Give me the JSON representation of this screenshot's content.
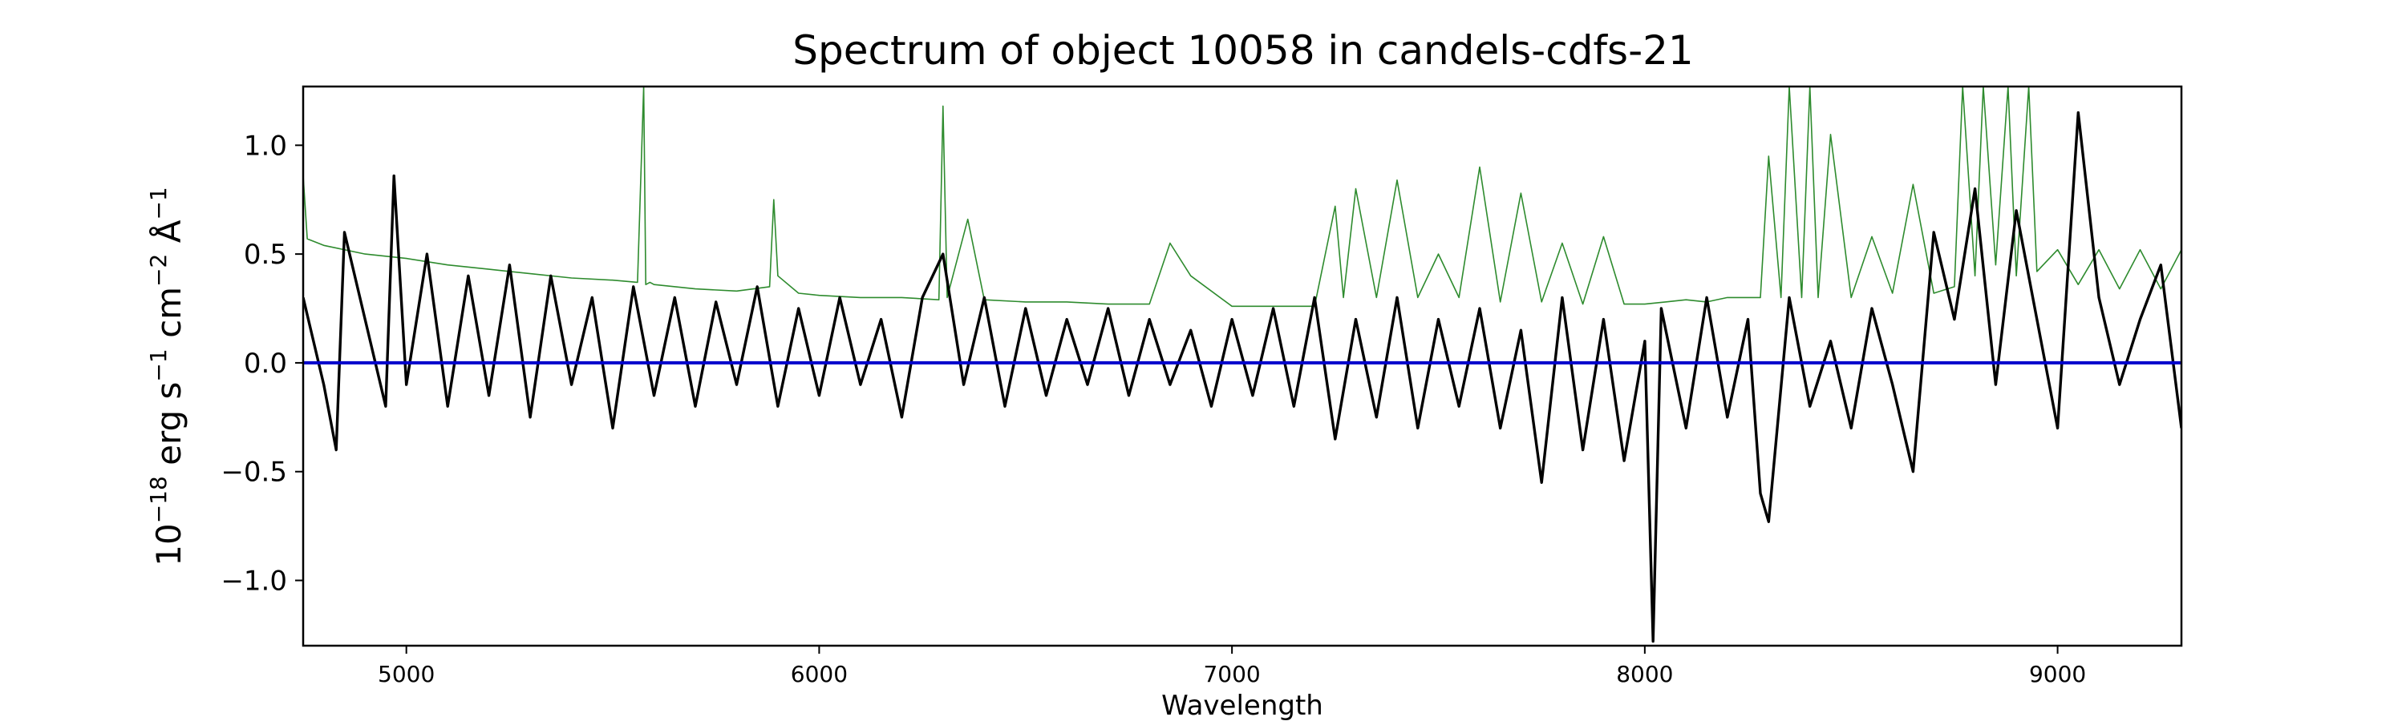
{
  "chart_data": {
    "type": "line",
    "title": "Spectrum of object 10058 in candels-cdfs-21",
    "xlabel": "Wavelength",
    "ylabel": "10^{-18} erg s^{-1} cm^{-2} Å^{-1}",
    "ylabel_parts": {
      "base1": "10",
      "sup1": "−18",
      "unit1": " erg s",
      "sup2": "−1",
      "unit2": " cm",
      "sup3": "−2",
      "unit3": " Å",
      "sup4": "−1"
    },
    "xlim": [
      4750,
      9300
    ],
    "ylim": [
      -1.3,
      1.27
    ],
    "xticks": [
      5000,
      6000,
      7000,
      8000,
      9000
    ],
    "xtick_labels": [
      "5000",
      "6000",
      "7000",
      "8000",
      "9000"
    ],
    "yticks": [
      -1.0,
      -0.5,
      0.0,
      0.5,
      1.0
    ],
    "ytick_labels": [
      "−1.0",
      "−0.5",
      "0.0",
      "0.5",
      "1.0"
    ],
    "grid": false,
    "series": [
      {
        "color": "#2e8b2e",
        "style": "thin",
        "x": [
          4750,
          4760,
          4800,
          4900,
          5000,
          5100,
          5200,
          5300,
          5400,
          5500,
          5560,
          5575,
          5580,
          5590,
          5600,
          5700,
          5800,
          5880,
          5890,
          5900,
          5950,
          6000,
          6100,
          6200,
          6290,
          6300,
          6310,
          6360,
          6400,
          6500,
          6600,
          6700,
          6800,
          6850,
          6900,
          7000,
          7100,
          7200,
          7250,
          7270,
          7300,
          7350,
          7400,
          7450,
          7500,
          7550,
          7600,
          7650,
          7700,
          7750,
          7800,
          7850,
          7900,
          7950,
          8000,
          8050,
          8100,
          8150,
          8200,
          8280,
          8300,
          8330,
          8350,
          8380,
          8400,
          8420,
          8450,
          8500,
          8550,
          8600,
          8650,
          8700,
          8750,
          8770,
          8800,
          8820,
          8850,
          8880,
          8900,
          8930,
          8950,
          9000,
          9050,
          9100,
          9150,
          9200,
          9250,
          9300
        ],
        "values": [
          0.86,
          0.57,
          0.54,
          0.5,
          0.48,
          0.45,
          0.43,
          0.41,
          0.39,
          0.38,
          0.37,
          1.27,
          0.36,
          0.37,
          0.36,
          0.34,
          0.33,
          0.35,
          0.75,
          0.4,
          0.32,
          0.31,
          0.3,
          0.3,
          0.29,
          1.18,
          0.3,
          0.66,
          0.29,
          0.28,
          0.28,
          0.27,
          0.27,
          0.55,
          0.4,
          0.26,
          0.26,
          0.26,
          0.72,
          0.3,
          0.8,
          0.3,
          0.84,
          0.3,
          0.5,
          0.3,
          0.9,
          0.28,
          0.78,
          0.28,
          0.55,
          0.27,
          0.58,
          0.27,
          0.27,
          0.28,
          0.29,
          0.28,
          0.3,
          0.3,
          0.95,
          0.3,
          1.27,
          0.3,
          1.27,
          0.3,
          1.05,
          0.3,
          0.58,
          0.32,
          0.82,
          0.32,
          0.35,
          1.27,
          0.4,
          1.27,
          0.45,
          1.27,
          0.4,
          1.27,
          0.42,
          0.52,
          0.36,
          0.52,
          0.34,
          0.52,
          0.34,
          0.52
        ]
      },
      {
        "color": "#000000",
        "style": "thick",
        "x": [
          4750,
          4800,
          4830,
          4850,
          4900,
          4950,
          4970,
          5000,
          5050,
          5100,
          5150,
          5200,
          5250,
          5300,
          5350,
          5400,
          5450,
          5500,
          5550,
          5600,
          5650,
          5700,
          5750,
          5800,
          5850,
          5900,
          5950,
          6000,
          6050,
          6100,
          6150,
          6200,
          6250,
          6300,
          6350,
          6400,
          6450,
          6500,
          6550,
          6600,
          6650,
          6700,
          6750,
          6800,
          6850,
          6900,
          6950,
          7000,
          7050,
          7100,
          7150,
          7200,
          7250,
          7300,
          7350,
          7400,
          7450,
          7500,
          7550,
          7600,
          7650,
          7700,
          7750,
          7800,
          7850,
          7900,
          7950,
          8000,
          8020,
          8040,
          8100,
          8150,
          8200,
          8250,
          8280,
          8300,
          8350,
          8400,
          8450,
          8500,
          8550,
          8600,
          8650,
          8700,
          8750,
          8800,
          8850,
          8900,
          8950,
          9000,
          9050,
          9100,
          9150,
          9200,
          9250,
          9300
        ],
        "values": [
          0.3,
          -0.1,
          -0.4,
          0.6,
          0.2,
          -0.2,
          0.86,
          -0.1,
          0.5,
          -0.2,
          0.4,
          -0.15,
          0.45,
          -0.25,
          0.4,
          -0.1,
          0.3,
          -0.3,
          0.35,
          -0.15,
          0.3,
          -0.2,
          0.28,
          -0.1,
          0.35,
          -0.2,
          0.25,
          -0.15,
          0.3,
          -0.1,
          0.2,
          -0.25,
          0.3,
          0.5,
          -0.1,
          0.3,
          -0.2,
          0.25,
          -0.15,
          0.2,
          -0.1,
          0.25,
          -0.15,
          0.2,
          -0.1,
          0.15,
          -0.2,
          0.2,
          -0.15,
          0.25,
          -0.2,
          0.3,
          -0.35,
          0.2,
          -0.25,
          0.3,
          -0.3,
          0.2,
          -0.2,
          0.25,
          -0.3,
          0.15,
          -0.55,
          0.3,
          -0.4,
          0.2,
          -0.45,
          0.1,
          -1.28,
          0.25,
          -0.3,
          0.3,
          -0.25,
          0.2,
          -0.6,
          -0.73,
          0.3,
          -0.2,
          0.1,
          -0.3,
          0.25,
          -0.1,
          -0.5,
          0.6,
          0.2,
          0.8,
          -0.1,
          0.7,
          0.2,
          -0.3,
          1.15,
          0.3,
          -0.1,
          0.2,
          0.45,
          -0.3
        ]
      },
      {
        "color": "#0000cc",
        "style": "zero",
        "x": [
          4750,
          9300
        ],
        "values": [
          0.0,
          0.0
        ]
      }
    ]
  }
}
